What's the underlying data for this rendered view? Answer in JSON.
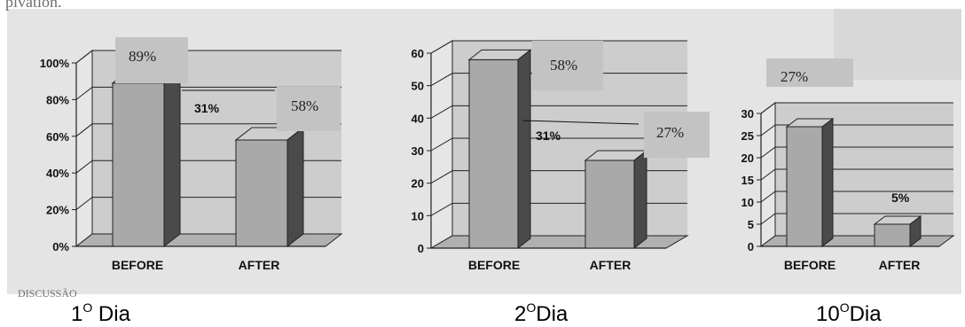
{
  "header_fragment": "pivation.",
  "footer_fragment": "DISCUSSÃO",
  "colors": {
    "paper": "#e4e4e4",
    "wall": "#cdcdcd",
    "floor": "#b0b0b0",
    "bar_front": "#a9a9a9",
    "bar_top": "#cfcfcf",
    "bar_side": "#4a4a4a",
    "grid": "#222222",
    "annotation_box": "#c3c3c3"
  },
  "chart_data": [
    {
      "type": "bar",
      "view": "3d",
      "categories": [
        "BEFORE",
        "AFTER"
      ],
      "values": [
        89,
        58
      ],
      "ylim": [
        0,
        100
      ],
      "y_ticks": [
        "0%",
        "20%",
        "40%",
        "60%",
        "80%",
        "100%"
      ],
      "grid": true,
      "annotations": [
        "89%",
        "58%",
        "31%"
      ],
      "caption": {
        "main": "1",
        "sup": "O",
        "rest": " Dia"
      }
    },
    {
      "type": "bar",
      "view": "3d",
      "categories": [
        "BEFORE",
        "AFTER"
      ],
      "values": [
        58,
        27
      ],
      "ylim": [
        0,
        60
      ],
      "y_ticks": [
        "0",
        "10",
        "20",
        "30",
        "40",
        "50",
        "60"
      ],
      "grid": true,
      "annotations": [
        "58%",
        "27%",
        "31%"
      ],
      "caption": {
        "main": "2",
        "sup": "O",
        "rest": "Dia"
      }
    },
    {
      "type": "bar",
      "view": "3d",
      "categories": [
        "BEFORE",
        "AFTER"
      ],
      "values": [
        27,
        5
      ],
      "ylim": [
        0,
        30
      ],
      "y_ticks": [
        "0",
        "5",
        "10",
        "15",
        "20",
        "25",
        "30"
      ],
      "grid": true,
      "annotations": [
        "27%",
        "5%"
      ],
      "caption": {
        "main": "10",
        "sup": "O",
        "rest": "Dia"
      }
    }
  ]
}
